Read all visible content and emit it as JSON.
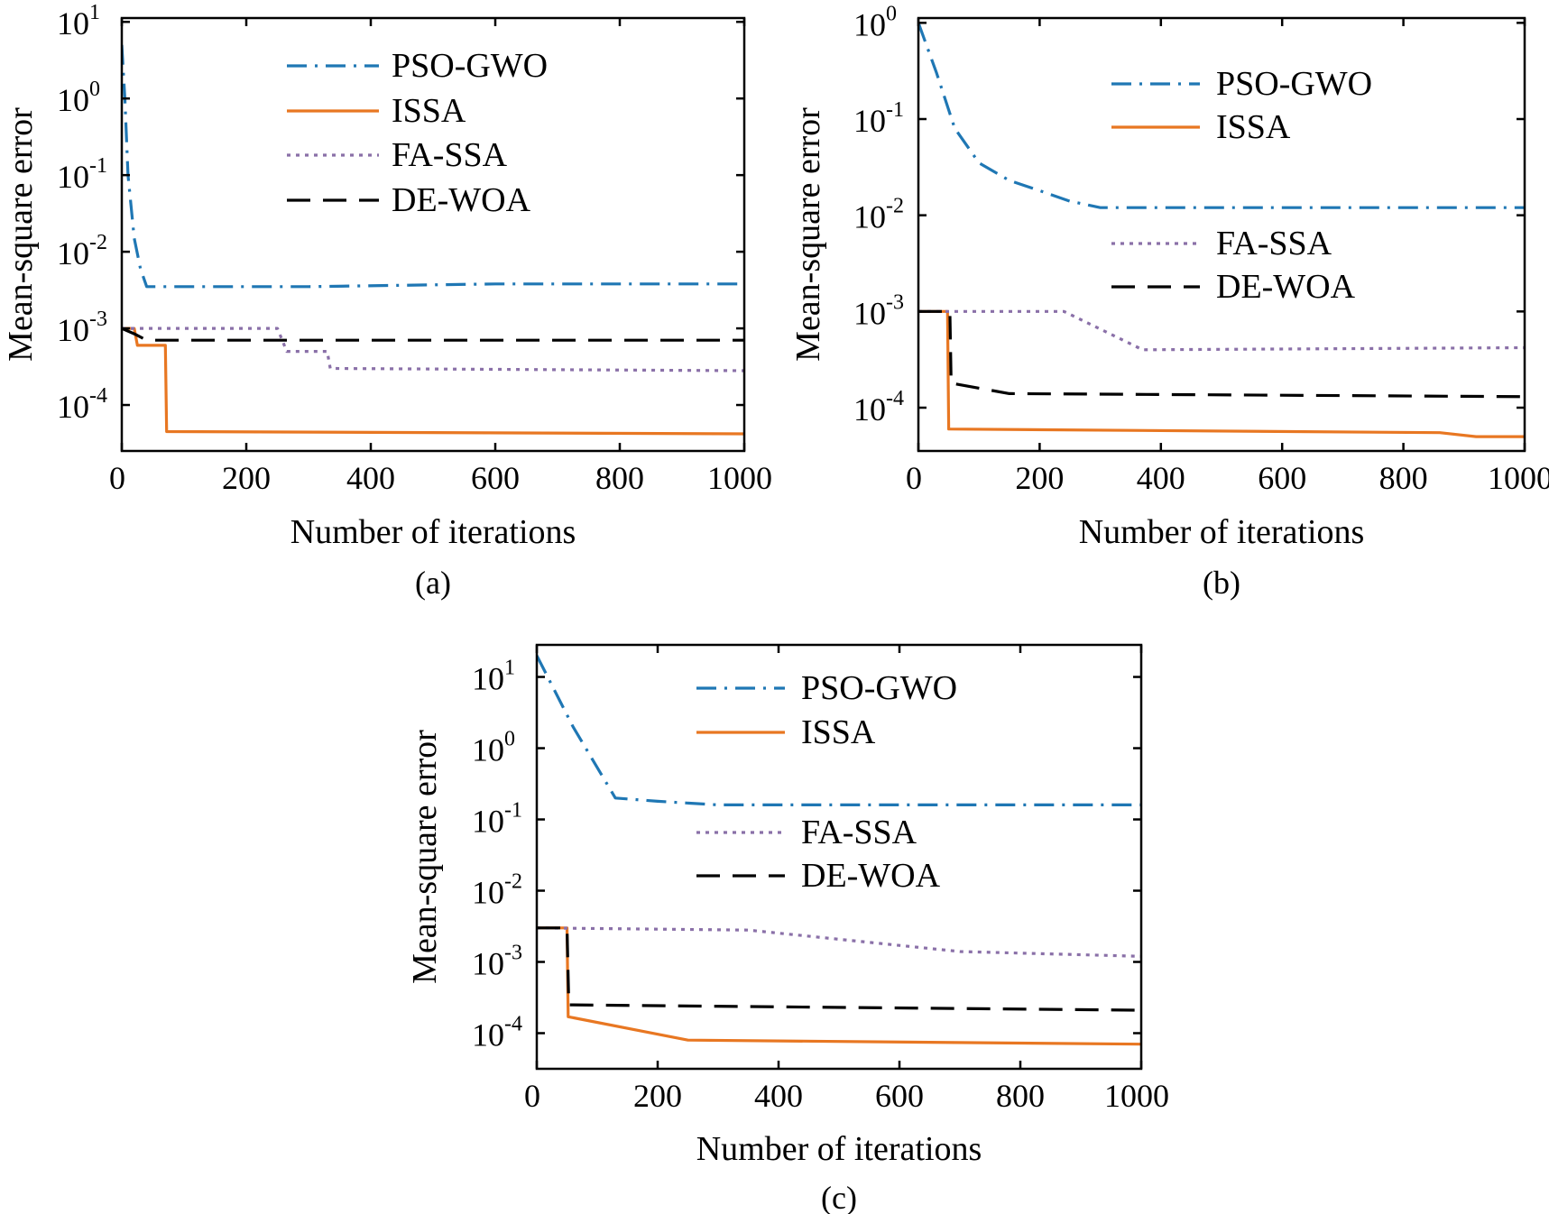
{
  "colors": {
    "PSO-GWO": "#1f77b4",
    "ISSA": "#e87722",
    "FA-SSA": "#8a70a8",
    "DE-WOA": "#000000"
  },
  "dash_styles": {
    "PSO-GWO": "dash-dot",
    "ISSA": "solid",
    "FA-SSA": "dotted",
    "DE-WOA": "dashed"
  },
  "chart_data": [
    {
      "id": "a",
      "type": "line",
      "panel_label": "(a)",
      "xlabel": "Number of iterations",
      "ylabel": "Mean-square error",
      "yscale": "log",
      "xlim": [
        0,
        1000
      ],
      "ylim_exp": [
        -4.6,
        1.05
      ],
      "xticks": [
        "0",
        "200",
        "400",
        "600",
        "800",
        "1000"
      ],
      "yticks": [
        {
          "exp": -4,
          "base": "10",
          "sup": "-4"
        },
        {
          "exp": -3,
          "base": "10",
          "sup": "-3"
        },
        {
          "exp": -2,
          "base": "10",
          "sup": "-2"
        },
        {
          "exp": -1,
          "base": "10",
          "sup": "-1"
        },
        {
          "exp": 0,
          "base": "10",
          "sup": "0"
        },
        {
          "exp": 1,
          "base": "10",
          "sup": "1"
        }
      ],
      "legend_position": "upper-center",
      "legend_split": false,
      "series": [
        {
          "name": "PSO-GWO",
          "x": [
            0,
            5,
            10,
            20,
            30,
            40,
            300,
            600,
            1000
          ],
          "y": [
            5,
            1,
            0.1,
            0.015,
            0.006,
            0.0035,
            0.0035,
            0.0038,
            0.0038
          ]
        },
        {
          "name": "ISSA",
          "x": [
            0,
            20,
            25,
            70,
            72,
            1000
          ],
          "y": [
            0.001,
            0.001,
            0.0006,
            0.0006,
            4.5e-05,
            4.2e-05
          ]
        },
        {
          "name": "FA-SSA",
          "x": [
            0,
            250,
            265,
            330,
            335,
            1000
          ],
          "y": [
            0.001,
            0.001,
            0.0005,
            0.0005,
            0.0003,
            0.00028
          ]
        },
        {
          "name": "DE-WOA",
          "x": [
            0,
            20,
            40,
            1000
          ],
          "y": [
            0.001,
            0.00085,
            0.0007,
            0.0007
          ]
        }
      ]
    },
    {
      "id": "b",
      "type": "line",
      "panel_label": "(b)",
      "xlabel": "Number of iterations",
      "ylabel": "Mean-square error",
      "yscale": "log",
      "xlim": [
        0,
        1000
      ],
      "ylim_exp": [
        -4.45,
        0.05
      ],
      "xticks": [
        "0",
        "200",
        "400",
        "600",
        "800",
        "1000"
      ],
      "yticks": [
        {
          "exp": -4,
          "base": "10",
          "sup": "-4"
        },
        {
          "exp": -3,
          "base": "10",
          "sup": "-3"
        },
        {
          "exp": -2,
          "base": "10",
          "sup": "-2"
        },
        {
          "exp": -1,
          "base": "10",
          "sup": "-1"
        },
        {
          "exp": 0,
          "base": "10",
          "sup": "0"
        }
      ],
      "legend_position": "split-center",
      "legend_split": true,
      "series": [
        {
          "name": "PSO-GWO",
          "x": [
            0,
            30,
            60,
            100,
            150,
            200,
            250,
            300,
            350,
            600,
            1000
          ],
          "y": [
            1,
            0.3,
            0.08,
            0.035,
            0.023,
            0.018,
            0.014,
            0.012,
            0.012,
            0.012,
            0.012
          ]
        },
        {
          "name": "ISSA",
          "x": [
            0,
            48,
            50,
            860,
            920,
            1000
          ],
          "y": [
            0.001,
            0.001,
            6e-05,
            5.5e-05,
            5e-05,
            5e-05
          ]
        },
        {
          "name": "FA-SSA",
          "x": [
            0,
            240,
            370,
            1000
          ],
          "y": [
            0.001,
            0.001,
            0.0004,
            0.00042
          ]
        },
        {
          "name": "DE-WOA",
          "x": [
            0,
            52,
            54,
            150,
            1000
          ],
          "y": [
            0.001,
            0.001,
            0.00018,
            0.00014,
            0.00013
          ]
        }
      ]
    },
    {
      "id": "c",
      "type": "line",
      "panel_label": "(c)",
      "xlabel": "Number of iterations",
      "ylabel": "Mean-square error",
      "yscale": "log",
      "xlim": [
        0,
        1000
      ],
      "ylim_exp": [
        -4.5,
        1.45
      ],
      "xticks": [
        "0",
        "200",
        "400",
        "600",
        "800",
        "1000"
      ],
      "yticks": [
        {
          "exp": -4,
          "base": "10",
          "sup": "-4"
        },
        {
          "exp": -3,
          "base": "10",
          "sup": "-3"
        },
        {
          "exp": -2,
          "base": "10",
          "sup": "-2"
        },
        {
          "exp": -1,
          "base": "10",
          "sup": "-1"
        },
        {
          "exp": 0,
          "base": "10",
          "sup": "0"
        },
        {
          "exp": 1,
          "base": "10",
          "sup": "1"
        }
      ],
      "legend_position": "split-center",
      "legend_split": true,
      "series": [
        {
          "name": "PSO-GWO",
          "x": [
            0,
            60,
            130,
            200,
            300,
            1000
          ],
          "y": [
            20,
            2,
            0.2,
            0.18,
            0.16,
            0.16
          ]
        },
        {
          "name": "ISSA",
          "x": [
            0,
            50,
            52,
            250,
            1000
          ],
          "y": [
            0.003,
            0.003,
            0.00017,
            8e-05,
            7e-05
          ]
        },
        {
          "name": "FA-SSA",
          "x": [
            0,
            350,
            700,
            1000
          ],
          "y": [
            0.003,
            0.0028,
            0.0014,
            0.0012
          ]
        },
        {
          "name": "DE-WOA",
          "x": [
            0,
            50,
            53,
            1000
          ],
          "y": [
            0.003,
            0.003,
            0.00025,
            0.00021
          ]
        }
      ]
    }
  ]
}
